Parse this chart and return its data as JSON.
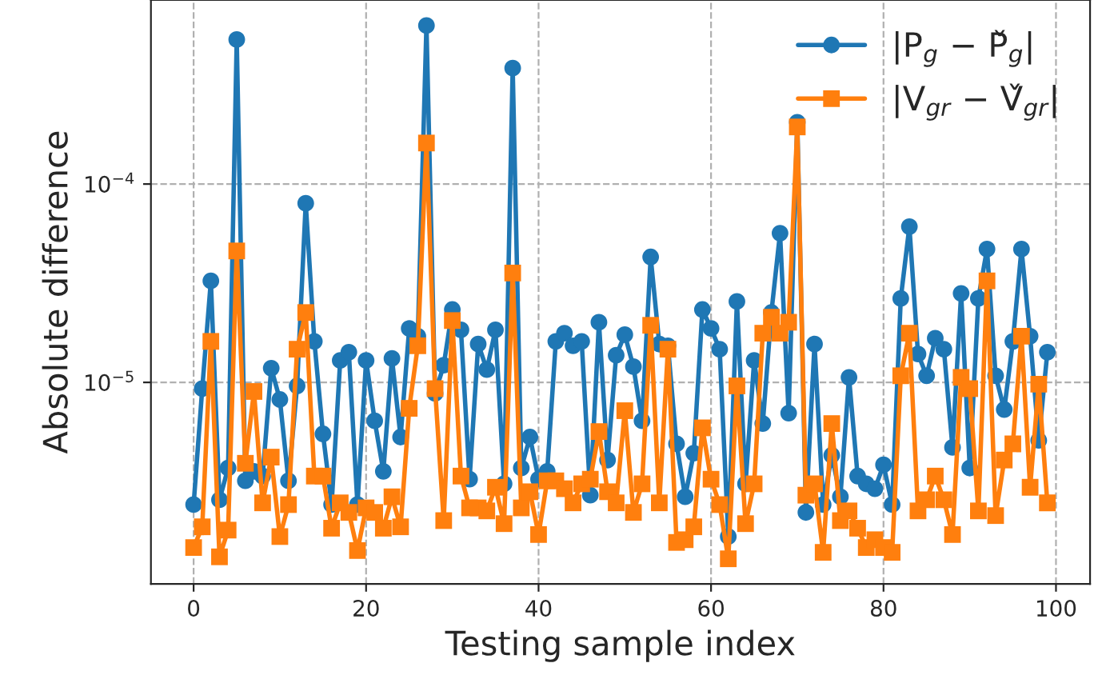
{
  "chart_data": {
    "type": "line",
    "xlabel": "Testing sample index",
    "ylabel": "Absolute difference",
    "x": [
      0,
      1,
      2,
      3,
      4,
      5,
      6,
      7,
      8,
      9,
      10,
      11,
      12,
      13,
      14,
      15,
      16,
      17,
      18,
      19,
      20,
      21,
      22,
      23,
      24,
      25,
      26,
      27,
      28,
      29,
      30,
      31,
      32,
      33,
      34,
      35,
      36,
      37,
      38,
      39,
      40,
      41,
      42,
      43,
      44,
      45,
      46,
      47,
      48,
      49,
      50,
      51,
      52,
      53,
      54,
      55,
      56,
      57,
      58,
      59,
      60,
      61,
      62,
      63,
      64,
      65,
      66,
      67,
      68,
      69,
      70,
      71,
      72,
      73,
      74,
      75,
      76,
      77,
      78,
      79,
      80,
      81,
      82,
      83,
      84,
      85,
      86,
      87,
      88,
      89,
      90,
      91,
      92,
      93,
      94,
      95,
      96,
      97,
      98,
      99
    ],
    "series": [
      {
        "name": "|P$_{g}$ − P̌$_{g}$|",
        "color": "#1f77b4",
        "marker": "circle",
        "values": [
          2.42e-06,
          9.3e-06,
          3.25e-05,
          2.56e-06,
          3.7e-06,
          0.000535,
          3.19e-06,
          3.56e-06,
          3.37e-06,
          1.18e-05,
          8.2e-06,
          3.19e-06,
          9.6e-06,
          8e-05,
          1.61e-05,
          5.5e-06,
          2.42e-06,
          1.29e-05,
          1.42e-05,
          2.42e-06,
          1.29e-05,
          6.4e-06,
          3.56e-06,
          1.32e-05,
          5.3e-06,
          1.87e-05,
          1.71e-05,
          0.00063,
          8.8e-06,
          1.22e-05,
          2.33e-05,
          1.84e-05,
          3.25e-06,
          1.56e-05,
          1.16e-05,
          1.84e-05,
          3.08e-06,
          0.000384,
          3.7e-06,
          5.3e-06,
          3.25e-06,
          3.56e-06,
          1.61e-05,
          1.77e-05,
          1.53e-05,
          1.61e-05,
          2.7e-06,
          2.01e-05,
          4.06e-06,
          1.37e-05,
          1.74e-05,
          1.2e-05,
          6.4e-06,
          4.29e-05,
          1.56e-05,
          1.53e-05,
          4.9e-06,
          2.65e-06,
          4.4e-06,
          2.33e-05,
          1.87e-05,
          1.47e-05,
          1.67e-06,
          2.56e-05,
          3.08e-06,
          1.29e-05,
          6.2e-06,
          2.25e-05,
          5.65e-05,
          7e-06,
          0.000205,
          2.21e-06,
          1.56e-05,
          2.42e-06,
          4.29e-06,
          2.65e-06,
          1.06e-05,
          3.37e-06,
          3.08e-06,
          2.91e-06,
          3.84e-06,
          2.42e-06,
          2.65e-05,
          6.1e-05,
          1.39e-05,
          1.08e-05,
          1.67e-05,
          1.47e-05,
          4.7e-06,
          2.81e-05,
          3.7e-06,
          2.65e-05,
          4.7e-05,
          1.08e-05,
          7.3e-06,
          1.61e-05,
          4.7e-05,
          1.71e-05,
          5.1e-06,
          1.42e-05
        ]
      },
      {
        "name": "|V$_{gr}$ − V̌$_{gr}$|",
        "color": "#ff7f0e",
        "marker": "square",
        "values": [
          1.47e-06,
          1.87e-06,
          1.61e-05,
          1.32e-06,
          1.8e-06,
          4.6e-05,
          3.91e-06,
          9e-06,
          2.47e-06,
          4.2e-06,
          1.67e-06,
          2.42e-06,
          1.47e-05,
          2.25e-05,
          3.37e-06,
          3.37e-06,
          1.84e-06,
          2.47e-06,
          2.21e-06,
          1.42e-06,
          2.33e-06,
          2.21e-06,
          1.84e-06,
          2.65e-06,
          1.87e-06,
          7.4e-06,
          1.53e-05,
          0.000161,
          9.3e-06,
          2.01e-06,
          2.05e-05,
          3.37e-06,
          2.33e-06,
          2.33e-06,
          2.25e-06,
          2.96e-06,
          1.94e-06,
          3.56e-05,
          2.33e-06,
          2.81e-06,
          1.71e-06,
          3.19e-06,
          3.19e-06,
          2.91e-06,
          2.47e-06,
          3.08e-06,
          3.25e-06,
          5.65e-06,
          2.81e-06,
          2.47e-06,
          7.2e-06,
          2.21e-06,
          3.08e-06,
          1.94e-05,
          2.47e-06,
          1.47e-05,
          1.56e-06,
          1.61e-06,
          1.87e-06,
          5.9e-06,
          3.25e-06,
          2.42e-06,
          1.29e-06,
          9.6e-06,
          1.94e-06,
          3.08e-06,
          1.77e-05,
          2.13e-05,
          1.77e-05,
          2.01e-05,
          0.000194,
          2.7e-06,
          3.08e-06,
          1.39e-06,
          6.2e-06,
          2.01e-06,
          2.25e-06,
          1.84e-06,
          1.47e-06,
          1.61e-06,
          1.47e-06,
          1.39e-06,
          1.08e-05,
          1.77e-05,
          2.25e-06,
          2.56e-06,
          3.37e-06,
          2.56e-06,
          1.71e-06,
          1.06e-05,
          9.3e-06,
          2.25e-06,
          3.25e-05,
          2.13e-06,
          4.06e-06,
          4.9e-06,
          1.71e-05,
          2.96e-06,
          9.8e-06,
          2.47e-06
        ]
      }
    ],
    "log": "y",
    "xlim": [
      -4.95,
      103.95
    ],
    "xticks": [
      0,
      20,
      40,
      60,
      80,
      100
    ],
    "ylim": [
      9.64e-07,
      0.000847
    ],
    "yticks": [
      {
        "value": 1e-05,
        "label": "10$^{−5}$"
      },
      {
        "value": 0.0001,
        "label": "10$^{−4}$"
      }
    ],
    "grid": true,
    "legend": "top right",
    "line_style": "solid"
  }
}
